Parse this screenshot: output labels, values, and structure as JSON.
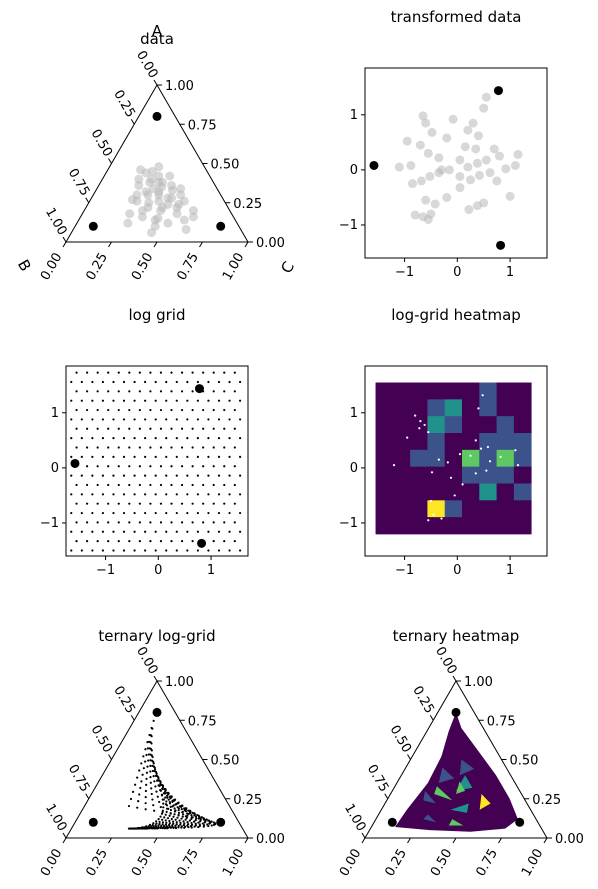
{
  "chart_data": [
    {
      "type": "scatter",
      "projection": "ternary",
      "title": "data",
      "vertex_label": "A",
      "side_labels": {
        "right": "C",
        "bottom_left": "B"
      },
      "ticks": [
        "0.00",
        "0.25",
        "0.50",
        "0.75",
        "1.00"
      ],
      "anchors": [
        [
          0.8,
          0.1,
          0.1
        ],
        [
          0.1,
          0.8,
          0.1
        ],
        [
          0.1,
          0.1,
          0.8
        ]
      ],
      "points": [
        [
          0.4,
          0.33,
          0.27
        ],
        [
          0.34,
          0.35,
          0.31
        ],
        [
          0.45,
          0.3,
          0.25
        ],
        [
          0.3,
          0.4,
          0.3
        ],
        [
          0.28,
          0.3,
          0.42
        ],
        [
          0.38,
          0.28,
          0.34
        ],
        [
          0.25,
          0.42,
          0.33
        ],
        [
          0.33,
          0.25,
          0.42
        ],
        [
          0.22,
          0.36,
          0.42
        ],
        [
          0.44,
          0.34,
          0.22
        ],
        [
          0.2,
          0.48,
          0.32
        ],
        [
          0.26,
          0.22,
          0.52
        ],
        [
          0.36,
          0.42,
          0.22
        ],
        [
          0.18,
          0.3,
          0.52
        ],
        [
          0.3,
          0.46,
          0.24
        ],
        [
          0.48,
          0.25,
          0.27
        ],
        [
          0.15,
          0.42,
          0.43
        ],
        [
          0.24,
          0.26,
          0.5
        ],
        [
          0.4,
          0.4,
          0.2
        ],
        [
          0.32,
          0.33,
          0.35
        ],
        [
          0.12,
          0.38,
          0.5
        ],
        [
          0.27,
          0.5,
          0.23
        ],
        [
          0.35,
          0.3,
          0.35
        ],
        [
          0.2,
          0.2,
          0.6
        ],
        [
          0.42,
          0.28,
          0.3
        ],
        [
          0.16,
          0.5,
          0.34
        ],
        [
          0.3,
          0.22,
          0.48
        ],
        [
          0.22,
          0.44,
          0.34
        ],
        [
          0.38,
          0.35,
          0.27
        ],
        [
          0.14,
          0.28,
          0.58
        ],
        [
          0.26,
          0.36,
          0.38
        ],
        [
          0.34,
          0.2,
          0.46
        ],
        [
          0.18,
          0.56,
          0.26
        ],
        [
          0.46,
          0.36,
          0.18
        ],
        [
          0.28,
          0.28,
          0.44
        ],
        [
          0.1,
          0.46,
          0.44
        ],
        [
          0.36,
          0.24,
          0.4
        ],
        [
          0.24,
          0.32,
          0.44
        ],
        [
          0.12,
          0.6,
          0.28
        ],
        [
          0.08,
          0.3,
          0.62
        ],
        [
          0.32,
          0.4,
          0.28
        ],
        [
          0.2,
          0.38,
          0.42
        ],
        [
          0.16,
          0.22,
          0.62
        ],
        [
          0.42,
          0.22,
          0.36
        ],
        [
          0.26,
          0.48,
          0.26
        ],
        [
          0.06,
          0.5,
          0.44
        ],
        [
          0.22,
          0.28,
          0.5
        ],
        [
          0.3,
          0.34,
          0.36
        ],
        [
          0.14,
          0.44,
          0.42
        ],
        [
          0.38,
          0.3,
          0.32
        ]
      ],
      "point_color": "#b8b8b8",
      "anchor_color": "#000000"
    },
    {
      "type": "scatter",
      "title": "transformed data",
      "xlim": [
        -1.75,
        1.7
      ],
      "ylim": [
        -1.6,
        1.85
      ],
      "xticks": [
        -1,
        0,
        1
      ],
      "yticks": [
        -1,
        0,
        1
      ],
      "xtick_labels": [
        "−1",
        "0",
        "1"
      ],
      "ytick_labels": [
        "−1",
        "0",
        "1"
      ],
      "anchors": [
        [
          -1.58,
          0.08
        ],
        [
          0.78,
          1.44
        ],
        [
          0.82,
          -1.37
        ]
      ],
      "points": [
        [
          -0.65,
          0.98
        ],
        [
          -0.6,
          0.85
        ],
        [
          -0.48,
          0.68
        ],
        [
          -0.7,
          0.45
        ],
        [
          -0.95,
          0.52
        ],
        [
          -1.1,
          0.05
        ],
        [
          -0.88,
          0.08
        ],
        [
          -0.55,
          0.3
        ],
        [
          -0.35,
          0.22
        ],
        [
          -0.2,
          0.58
        ],
        [
          -0.08,
          0.92
        ],
        [
          0.2,
          0.72
        ],
        [
          0.4,
          0.62
        ],
        [
          0.5,
          1.12
        ],
        [
          0.55,
          1.32
        ],
        [
          0.35,
          0.38
        ],
        [
          0.15,
          0.42
        ],
        [
          0.05,
          0.18
        ],
        [
          0.2,
          0.05
        ],
        [
          0.38,
          0.12
        ],
        [
          0.55,
          0.18
        ],
        [
          0.7,
          0.38
        ],
        [
          0.8,
          0.25
        ],
        [
          1.15,
          0.28
        ],
        [
          1.1,
          0.08
        ],
        [
          0.92,
          0.02
        ],
        [
          0.62,
          -0.05
        ],
        [
          0.42,
          -0.1
        ],
        [
          0.25,
          -0.18
        ],
        [
          0.05,
          -0.12
        ],
        [
          -0.15,
          0.0
        ],
        [
          -0.35,
          -0.05
        ],
        [
          -0.52,
          -0.12
        ],
        [
          -0.68,
          -0.2
        ],
        [
          -0.85,
          -0.25
        ],
        [
          -0.6,
          -0.55
        ],
        [
          -0.42,
          -0.62
        ],
        [
          -0.5,
          -0.8
        ],
        [
          -0.55,
          -0.9
        ],
        [
          -0.65,
          -0.85
        ],
        [
          -0.8,
          -0.82
        ],
        [
          -0.2,
          -0.5
        ],
        [
          0.05,
          -0.32
        ],
        [
          0.22,
          -0.72
        ],
        [
          0.38,
          -0.65
        ],
        [
          0.5,
          -0.6
        ],
        [
          0.75,
          -0.2
        ],
        [
          1.0,
          -0.48
        ],
        [
          0.3,
          0.85
        ],
        [
          -0.3,
          0.0
        ]
      ],
      "point_color": "#b8b8b8",
      "anchor_color": "#000000"
    },
    {
      "type": "scatter",
      "title": "log grid",
      "xlim": [
        -1.75,
        1.7
      ],
      "ylim": [
        -1.6,
        1.85
      ],
      "xticks": [
        -1,
        0,
        1
      ],
      "yticks": [
        -1,
        0,
        1
      ],
      "xtick_labels": [
        "−1",
        "0",
        "1"
      ],
      "ytick_labels": [
        "−1",
        "0",
        "1"
      ],
      "anchors": [
        [
          -1.58,
          0.08
        ],
        [
          0.78,
          1.44
        ],
        [
          0.82,
          -1.37
        ]
      ],
      "grid_points": "hexagonal lattice covering the axes"
    },
    {
      "type": "heatmap",
      "title": "log-grid heatmap",
      "xlim": [
        -1.75,
        1.7
      ],
      "ylim": [
        -1.6,
        1.85
      ],
      "xticks": [
        -1,
        0,
        1
      ],
      "yticks": [
        -1,
        0,
        1
      ],
      "xtick_labels": [
        "−1",
        "0",
        "1"
      ],
      "ytick_labels": [
        "−1",
        "0",
        "1"
      ],
      "extent": [
        -1.55,
        1.4,
        -1.2,
        1.55
      ],
      "cols": 9,
      "rows": 9,
      "colormap": [
        "#440154",
        "#3b528b",
        "#21918c",
        "#5ec962",
        "#fde725"
      ],
      "cells": [
        [
          0,
          0,
          0,
          0,
          0,
          0,
          0,
          0,
          0
        ],
        [
          0,
          0,
          0,
          0,
          0,
          0,
          0,
          0,
          0
        ],
        [
          0,
          0,
          0,
          1,
          2,
          0,
          0,
          0,
          0
        ],
        [
          0,
          0,
          0,
          0,
          0,
          0,
          0,
          0,
          0
        ],
        [
          0,
          0,
          0,
          0,
          0,
          1,
          0,
          0,
          0
        ],
        [
          0,
          0,
          0,
          0,
          0,
          0,
          0,
          0,
          0
        ],
        [
          0,
          0,
          0,
          0,
          0,
          0,
          0,
          0,
          0
        ],
        [
          0,
          0,
          0,
          0,
          0,
          0,
          0,
          0,
          0
        ],
        [
          0,
          0,
          0,
          0,
          0,
          0,
          0,
          0,
          0
        ]
      ],
      "grid": [
        [
          0,
          0,
          0,
          0,
          0,
          0,
          1,
          0,
          0
        ],
        [
          0,
          0,
          0,
          1,
          2,
          0,
          1,
          0,
          0
        ],
        [
          0,
          0,
          0,
          2,
          1,
          0,
          0,
          1,
          0
        ],
        [
          0,
          0,
          0,
          1,
          0,
          0,
          1,
          1,
          1
        ],
        [
          0,
          0,
          1,
          1,
          0,
          3,
          1,
          3,
          1
        ],
        [
          0,
          0,
          0,
          0,
          0,
          1,
          1,
          1,
          0
        ],
        [
          0,
          0,
          0,
          0,
          0,
          0,
          2,
          0,
          1
        ],
        [
          0,
          0,
          0,
          4,
          1,
          0,
          0,
          0,
          0
        ],
        [
          0,
          0,
          0,
          0,
          0,
          0,
          0,
          0,
          0
        ]
      ],
      "points": [
        [
          -0.8,
          0.95
        ],
        [
          -0.7,
          0.85
        ],
        [
          -0.62,
          0.78
        ],
        [
          -0.72,
          0.72
        ],
        [
          -0.55,
          0.65
        ],
        [
          -0.95,
          0.55
        ],
        [
          -0.35,
          0.15
        ],
        [
          -0.18,
          0.1
        ],
        [
          0.05,
          0.25
        ],
        [
          0.25,
          0.22
        ],
        [
          0.45,
          0.35
        ],
        [
          0.62,
          0.12
        ],
        [
          0.82,
          0.2
        ],
        [
          1.1,
          0.32
        ],
        [
          1.15,
          0.05
        ],
        [
          0.55,
          -0.05
        ],
        [
          0.35,
          -0.1
        ],
        [
          0.1,
          -0.3
        ],
        [
          -0.12,
          -0.18
        ],
        [
          -0.48,
          -0.08
        ],
        [
          -1.2,
          0.05
        ],
        [
          -0.5,
          -0.6
        ],
        [
          -0.45,
          -0.85
        ],
        [
          -0.55,
          -0.95
        ],
        [
          -0.3,
          -0.92
        ],
        [
          -0.05,
          -0.5
        ],
        [
          0.48,
          1.32
        ],
        [
          0.4,
          1.08
        ],
        [
          0.35,
          0.5
        ],
        [
          0.58,
          0.38
        ]
      ],
      "point_color": "#ffffff"
    },
    {
      "type": "scatter",
      "projection": "ternary",
      "title": "ternary log-grid",
      "ticks": [
        "0.00",
        "0.25",
        "0.50",
        "0.75",
        "1.00"
      ],
      "anchors": [
        [
          0.8,
          0.1,
          0.1
        ],
        [
          0.1,
          0.8,
          0.1
        ],
        [
          0.1,
          0.1,
          0.8
        ]
      ],
      "grid_points": "log-grid mapped into the simplex"
    },
    {
      "type": "heatmap",
      "projection": "ternary",
      "title": "ternary heatmap",
      "ticks": [
        "0.00",
        "0.25",
        "0.50",
        "0.75",
        "1.00"
      ],
      "anchors": [
        [
          0.8,
          0.1,
          0.1
        ],
        [
          0.1,
          0.8,
          0.1
        ],
        [
          0.1,
          0.1,
          0.8
        ]
      ],
      "colormap": [
        "#440154",
        "#3b528b",
        "#21918c",
        "#5ec962",
        "#fde725"
      ]
    }
  ]
}
